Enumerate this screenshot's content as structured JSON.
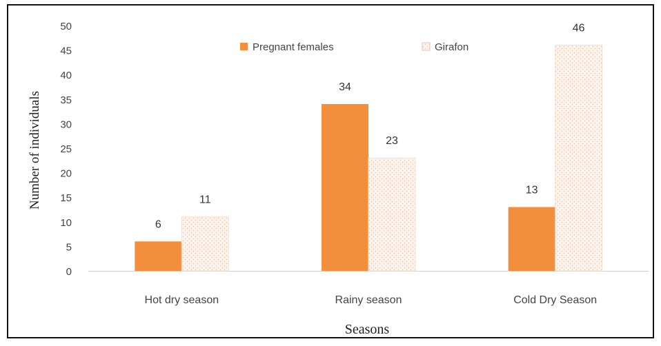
{
  "chart_data": {
    "type": "bar",
    "title": "",
    "xlabel": "Seasons",
    "ylabel": "Number of individuals",
    "ylim": [
      0,
      50
    ],
    "yticks": [
      0,
      5,
      10,
      15,
      20,
      25,
      30,
      35,
      40,
      45,
      50
    ],
    "grid": false,
    "legend_position": "top-center",
    "categories": [
      "Hot dry season",
      "Rainy season",
      "Cold Dry Season"
    ],
    "series": [
      {
        "name": "Pregnant females",
        "values": [
          6,
          34,
          13
        ],
        "color": "#f28e3c",
        "pattern": "solid"
      },
      {
        "name": "Girafon",
        "values": [
          11,
          23,
          46
        ],
        "color": "#fbe8dc",
        "pattern": "dotted"
      }
    ]
  }
}
